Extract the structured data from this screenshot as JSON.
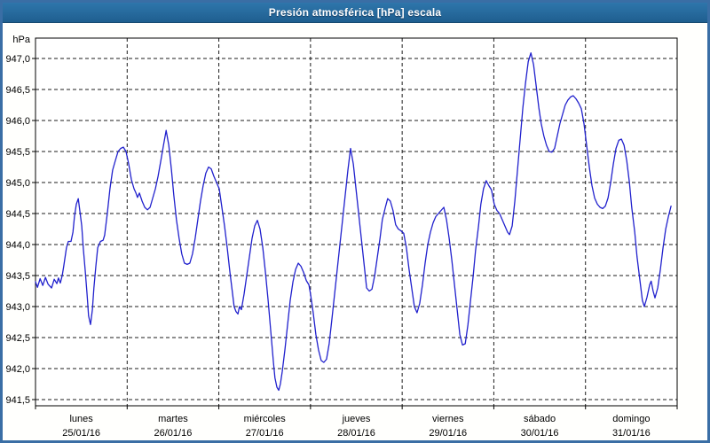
{
  "window": {
    "title": "Presión atmosférica [hPa] escala"
  },
  "colors": {
    "window_border": "#3a6ea5",
    "titlebar_bg": "#26699c",
    "titlebar_text": "#ffffff",
    "plot_bg": "#ffffff",
    "grid": "#1c1c1c",
    "axis": "#000000",
    "line": "#2121cd",
    "label_text": "#000000"
  },
  "chart_data": {
    "type": "line",
    "title": "Presión atmosférica [hPa] escala",
    "y_unit_label": "hPa",
    "ylim": [
      941.5,
      947.0
    ],
    "y_tick_step": 0.5,
    "y_ticks": [
      947.0,
      946.5,
      946.0,
      945.5,
      945.0,
      944.5,
      944.0,
      943.5,
      943.0,
      942.5,
      942.0,
      941.5
    ],
    "decimal_separator": ",",
    "grid": "dashed",
    "legend": "none",
    "x_hours_total": 168,
    "x_days": [
      {
        "name": "lunes",
        "date": "25/01/16"
      },
      {
        "name": "martes",
        "date": "26/01/16"
      },
      {
        "name": "miércoles",
        "date": "27/01/16"
      },
      {
        "name": "jueves",
        "date": "28/01/16"
      },
      {
        "name": "viernes",
        "date": "29/01/16"
      },
      {
        "name": "sábado",
        "date": "30/01/16"
      },
      {
        "name": "domingo",
        "date": "31/01/16"
      }
    ],
    "series": [
      {
        "name": "Presión atmosférica",
        "hours": [
          0.0,
          0.5,
          1.2,
          1.9,
          2.6,
          3.3,
          4.2,
          4.9,
          5.6,
          6.0,
          6.5,
          7.0,
          7.4,
          8.1,
          8.6,
          9.3,
          9.8,
          10.2,
          10.7,
          11.2,
          11.6,
          12.1,
          12.5,
          13.0,
          13.5,
          13.9,
          14.4,
          14.9,
          15.3,
          15.8,
          16.3,
          17.0,
          17.7,
          18.1,
          18.8,
          19.5,
          20.2,
          20.9,
          21.6,
          22.3,
          23.0,
          23.7,
          24.4,
          25.1,
          25.8,
          26.3,
          26.7,
          27.2,
          27.9,
          28.6,
          29.3,
          30.0,
          30.7,
          31.4,
          32.1,
          32.8,
          33.5,
          34.2,
          34.9,
          35.6,
          36.2,
          36.9,
          37.6,
          38.3,
          39.0,
          39.7,
          40.4,
          41.1,
          41.8,
          42.5,
          43.2,
          43.9,
          44.6,
          45.3,
          46.0,
          46.7,
          47.4,
          48.1,
          48.8,
          49.5,
          50.2,
          50.9,
          51.6,
          52.0,
          52.5,
          53.0,
          53.4,
          53.9,
          54.6,
          55.3,
          56.0,
          56.7,
          57.4,
          58.1,
          58.8,
          59.5,
          60.2,
          60.9,
          61.6,
          62.3,
          62.7,
          63.2,
          63.7,
          64.1,
          64.6,
          65.3,
          66.0,
          66.7,
          67.4,
          68.1,
          68.8,
          69.5,
          70.2,
          70.9,
          71.6,
          72.0,
          72.7,
          73.4,
          74.1,
          74.8,
          75.5,
          76.2,
          76.9,
          77.6,
          78.3,
          79.0,
          79.7,
          80.4,
          81.1,
          81.8,
          82.5,
          83.2,
          83.9,
          84.6,
          85.3,
          86.0,
          86.7,
          87.4,
          88.1,
          88.8,
          89.5,
          90.2,
          90.8,
          91.6,
          92.2,
          92.9,
          93.6,
          94.3,
          95.0,
          95.7,
          96.4,
          97.1,
          97.8,
          98.5,
          99.2,
          99.9,
          100.6,
          101.3,
          102.0,
          102.7,
          103.4,
          104.1,
          104.8,
          105.5,
          106.2,
          106.9,
          107.6,
          108.3,
          109.0,
          109.7,
          110.4,
          111.1,
          111.8,
          112.5,
          113.2,
          113.9,
          114.6,
          115.2,
          116.0,
          116.6,
          117.3,
          118.0,
          118.7,
          119.4,
          120.1,
          120.8,
          121.5,
          122.2,
          122.9,
          123.6,
          124.1,
          124.8,
          125.5,
          126.2,
          126.9,
          127.6,
          128.3,
          129.0,
          129.7,
          130.4,
          131.1,
          131.8,
          132.4,
          133.1,
          133.8,
          134.5,
          135.2,
          135.9,
          136.6,
          137.3,
          138.0,
          138.7,
          139.4,
          140.1,
          140.8,
          141.5,
          142.2,
          142.9,
          143.6,
          144.3,
          145.0,
          145.7,
          146.4,
          147.1,
          147.8,
          148.5,
          149.2,
          149.9,
          150.6,
          151.3,
          152.0,
          152.7,
          153.4,
          154.1,
          154.8,
          155.5,
          156.1,
          156.9,
          157.5,
          158.2,
          158.9,
          159.4,
          160.1,
          160.8,
          161.2,
          161.7,
          162.2,
          162.9,
          163.6,
          164.3,
          165.0,
          165.7,
          166.4
        ],
        "values": [
          943.4,
          943.31,
          943.45,
          943.34,
          943.47,
          943.36,
          943.3,
          943.44,
          943.37,
          943.46,
          943.38,
          943.5,
          943.65,
          943.95,
          944.05,
          944.05,
          944.2,
          944.45,
          944.65,
          944.74,
          944.55,
          944.3,
          943.95,
          943.6,
          943.2,
          942.85,
          942.71,
          942.95,
          943.3,
          943.65,
          943.95,
          944.05,
          944.07,
          944.15,
          944.5,
          944.9,
          945.2,
          945.35,
          945.5,
          945.55,
          945.57,
          945.5,
          945.3,
          945.05,
          944.9,
          944.83,
          944.76,
          944.83,
          944.7,
          944.6,
          944.56,
          944.6,
          944.75,
          944.9,
          945.1,
          945.35,
          945.6,
          945.84,
          945.6,
          945.2,
          944.8,
          944.4,
          944.1,
          943.85,
          943.7,
          943.68,
          943.7,
          943.85,
          944.1,
          944.4,
          944.7,
          944.95,
          945.15,
          945.25,
          945.22,
          945.1,
          945.0,
          944.9,
          944.6,
          944.3,
          943.95,
          943.55,
          943.2,
          943.0,
          942.92,
          942.88,
          943.0,
          942.95,
          943.2,
          943.5,
          943.8,
          944.1,
          944.3,
          944.39,
          944.25,
          943.95,
          943.55,
          943.1,
          942.6,
          942.1,
          941.85,
          941.7,
          941.65,
          941.75,
          941.95,
          942.3,
          942.7,
          943.1,
          943.4,
          943.6,
          943.7,
          943.65,
          943.55,
          943.42,
          943.35,
          943.2,
          942.9,
          942.55,
          942.3,
          942.13,
          942.1,
          942.15,
          942.4,
          942.8,
          943.2,
          943.6,
          944.0,
          944.4,
          944.8,
          945.2,
          945.55,
          945.3,
          944.9,
          944.5,
          944.1,
          943.7,
          943.3,
          943.25,
          943.28,
          943.5,
          943.8,
          944.1,
          944.4,
          944.6,
          944.74,
          944.7,
          944.55,
          944.32,
          944.25,
          944.22,
          944.18,
          943.95,
          943.6,
          943.3,
          943.0,
          942.9,
          943.05,
          943.35,
          943.7,
          944.0,
          944.2,
          944.35,
          944.45,
          944.5,
          944.55,
          944.6,
          944.4,
          944.1,
          943.75,
          943.35,
          942.95,
          942.55,
          942.38,
          942.4,
          942.7,
          943.1,
          943.5,
          943.9,
          944.3,
          944.65,
          944.9,
          945.03,
          944.95,
          944.88,
          944.65,
          944.55,
          944.5,
          944.4,
          944.3,
          944.2,
          944.16,
          944.3,
          944.7,
          945.2,
          945.7,
          946.2,
          946.6,
          946.95,
          947.09,
          946.9,
          946.55,
          946.2,
          945.95,
          945.75,
          945.6,
          945.5,
          945.49,
          945.55,
          945.75,
          945.95,
          946.1,
          946.25,
          946.33,
          946.38,
          946.4,
          946.35,
          946.28,
          946.19,
          945.95,
          945.6,
          945.25,
          944.95,
          944.75,
          944.65,
          944.6,
          944.58,
          944.62,
          944.75,
          945.0,
          945.3,
          945.55,
          945.68,
          945.7,
          945.6,
          945.35,
          945.0,
          944.6,
          944.2,
          943.8,
          943.45,
          943.1,
          943.0,
          943.15,
          943.35,
          943.41,
          943.25,
          943.14,
          943.3,
          943.6,
          943.95,
          944.25,
          944.45,
          944.62
        ]
      }
    ]
  }
}
